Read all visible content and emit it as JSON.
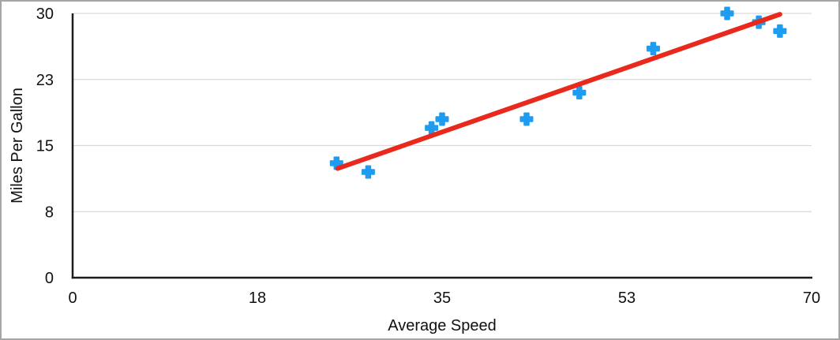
{
  "chart_data": {
    "type": "scatter",
    "title": "",
    "xlabel": "Average Speed",
    "ylabel": "Miles Per Gallon",
    "xlim": [
      0,
      70
    ],
    "ylim": [
      0,
      30
    ],
    "x_tick_labels": [
      "0",
      "18",
      "35",
      "53",
      "70"
    ],
    "y_tick_labels": [
      "0",
      "8",
      "15",
      "23",
      "30"
    ],
    "grid": "horizontal-only",
    "legend": "none",
    "series": [
      {
        "name": "Miles Per Gallon",
        "marker": "plus",
        "color": "#1E9CF0",
        "points": [
          [
            25,
            13
          ],
          [
            28,
            12
          ],
          [
            34,
            17
          ],
          [
            35,
            18
          ],
          [
            43,
            18
          ],
          [
            48,
            21
          ],
          [
            55,
            26
          ],
          [
            62,
            30
          ],
          [
            65,
            29
          ],
          [
            67,
            28
          ]
        ]
      }
    ],
    "trendline": {
      "type": "linear",
      "color": "#E8291C",
      "x1": 25.1,
      "y1": 12.4,
      "x2": 67.0,
      "y2": 29.9
    }
  },
  "colors": {
    "marker": "#1E9CF0",
    "trendline": "#E8291C",
    "gridline": "#D9D9D9",
    "axis_line": "#1C1C1E",
    "text": "#111111",
    "frame_border": "#A6A6A6",
    "background": "#FFFFFF"
  }
}
